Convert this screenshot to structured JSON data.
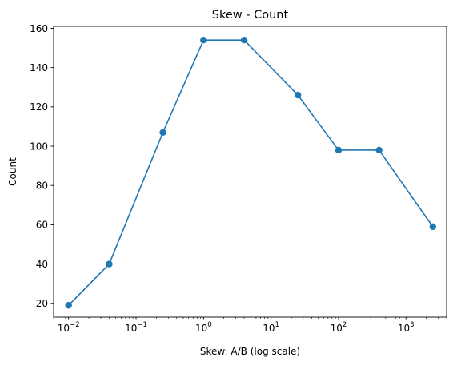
{
  "chart_data": {
    "type": "line",
    "title": "Skew - Count",
    "xlabel": "Skew: A/B (log scale)",
    "ylabel": "Count",
    "x_scale": "log",
    "xlim": [
      0.006,
      4000
    ],
    "ylim": [
      13,
      161
    ],
    "grid": false,
    "line_color": "#1f77b4",
    "marker": "circle",
    "series": [
      {
        "x": [
          0.01,
          0.04,
          0.25,
          1,
          4,
          25,
          100,
          400,
          2500
        ],
        "y": [
          19,
          40,
          107,
          154,
          154,
          126,
          98,
          98,
          59
        ]
      }
    ],
    "x_ticks": [
      {
        "value": 0.01,
        "base": "10",
        "exp": "−2"
      },
      {
        "value": 0.1,
        "base": "10",
        "exp": "−1"
      },
      {
        "value": 1,
        "base": "10",
        "exp": "0"
      },
      {
        "value": 10,
        "base": "10",
        "exp": "1"
      },
      {
        "value": 100,
        "base": "10",
        "exp": "2"
      },
      {
        "value": 1000,
        "base": "10",
        "exp": "3"
      }
    ],
    "y_ticks": [
      {
        "value": 20,
        "label": "20"
      },
      {
        "value": 40,
        "label": "40"
      },
      {
        "value": 60,
        "label": "60"
      },
      {
        "value": 80,
        "label": "80"
      },
      {
        "value": 100,
        "label": "100"
      },
      {
        "value": 120,
        "label": "120"
      },
      {
        "value": 140,
        "label": "140"
      },
      {
        "value": 160,
        "label": "160"
      }
    ]
  }
}
